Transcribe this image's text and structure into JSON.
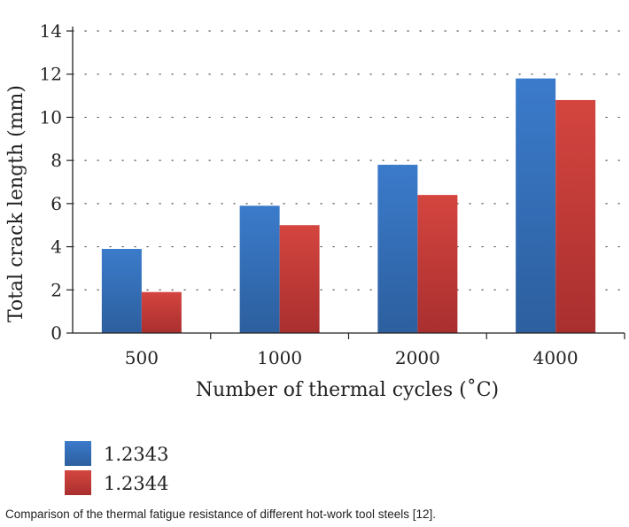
{
  "chart_data": {
    "type": "bar",
    "categories": [
      "500",
      "1000",
      "2000",
      "4000"
    ],
    "series": [
      {
        "name": "1.2343",
        "values": [
          3.9,
          5.9,
          7.8,
          11.8
        ],
        "color": "#3a74bf"
      },
      {
        "name": "1.2344",
        "values": [
          1.9,
          5.0,
          6.4,
          10.8
        ],
        "color": "#c7403e"
      }
    ],
    "xlabel": "Number of thermal cycles (˚C)",
    "ylabel": "Total crack length (mm)",
    "ylim": [
      0,
      14
    ],
    "yticks": [
      0,
      2,
      4,
      6,
      8,
      10,
      12,
      14
    ],
    "grid": true,
    "legend_position": "bottom-left"
  },
  "caption": "Comparison of the thermal fatigue resistance of different hot-work tool steels [12]."
}
